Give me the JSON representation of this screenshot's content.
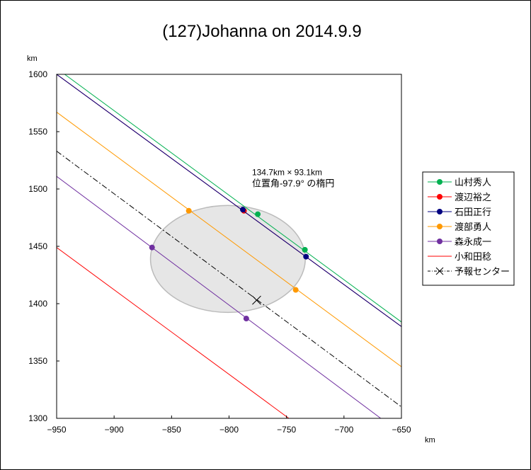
{
  "chart_data": {
    "type": "scatter",
    "title": "(127)Johanna on 2014.9.9",
    "xlabel": "km",
    "ylabel": "km",
    "xlim": [
      -950,
      -650
    ],
    "ylim": [
      1300,
      1600
    ],
    "xticks": [
      -950,
      -900,
      -850,
      -800,
      -750,
      -700,
      -650
    ],
    "yticks": [
      1300,
      1350,
      1400,
      1450,
      1500,
      1550,
      1600
    ],
    "grid": false,
    "legend_position": "right",
    "annotation": {
      "line1": "134.7km × 93.1km",
      "line2": "位置角-97.9° の楕円",
      "x": -780,
      "y": 1512
    },
    "ellipse": {
      "center": [
        -801,
        1439
      ],
      "width_km": 134.7,
      "height_km": 93.1,
      "fill": "#e6e6e6",
      "stroke": "#bbbbbb"
    },
    "series": [
      {
        "name": "山村秀人",
        "color": "#00b050",
        "marker": "dot",
        "line": [
          [
            -943,
            1600
          ],
          [
            -650,
            1384
          ]
        ],
        "points": [
          [
            -775,
            1478
          ],
          [
            -734,
            1447
          ]
        ]
      },
      {
        "name": "渡辺裕之",
        "color": "#ff0000",
        "marker": "dot",
        "line": [
          [
            -950,
            1600
          ],
          [
            -650,
            1380
          ]
        ],
        "points": [
          [
            -787,
            1481
          ]
        ]
      },
      {
        "name": "石田正行",
        "color": "#000080",
        "marker": "dot",
        "line": [
          [
            -950,
            1600
          ],
          [
            -650,
            1380
          ]
        ],
        "points": [
          [
            -788,
            1482
          ],
          [
            -733,
            1441
          ]
        ]
      },
      {
        "name": "渡部勇人",
        "color": "#ff9900",
        "marker": "dot",
        "line": [
          [
            -950,
            1567
          ],
          [
            -650,
            1345
          ]
        ],
        "points": [
          [
            -835,
            1481
          ],
          [
            -742,
            1412
          ]
        ]
      },
      {
        "name": "森永成一",
        "color": "#7030a0",
        "marker": "dot",
        "line": [
          [
            -950,
            1511
          ],
          [
            -668,
            1300
          ]
        ],
        "points": [
          [
            -867,
            1449
          ],
          [
            -785,
            1387
          ]
        ]
      },
      {
        "name": "小和田稔",
        "color": "#ff0000",
        "marker": "none",
        "line": [
          [
            -950,
            1449
          ],
          [
            -748,
            1300
          ]
        ],
        "points": []
      },
      {
        "name": "予報センター",
        "color": "#000000",
        "marker": "cross",
        "dashed": true,
        "line": [
          [
            -950,
            1533
          ],
          [
            -650,
            1310
          ]
        ],
        "points": [
          [
            -776,
            1403
          ]
        ]
      }
    ]
  }
}
